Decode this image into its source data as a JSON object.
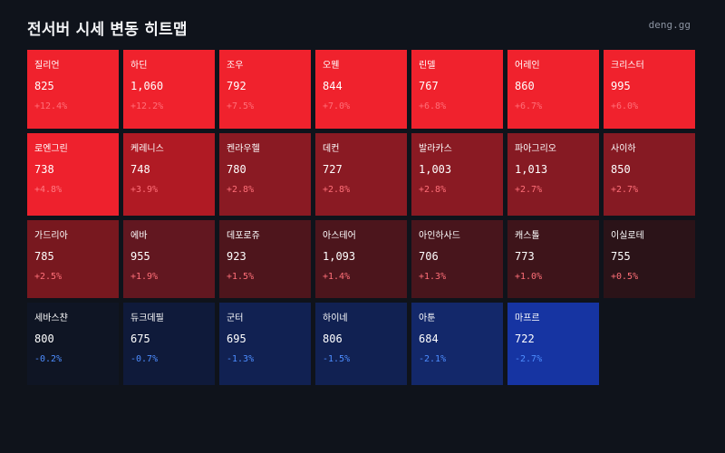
{
  "header": {
    "title": "전서버 시세 변동 히트맵",
    "brand": "deng.gg"
  },
  "cells": [
    {
      "name": "질리언",
      "price": "825",
      "change": "+12.4%",
      "bg": "#f0222d",
      "change_color": "#ff6f78"
    },
    {
      "name": "하딘",
      "price": "1,060",
      "change": "+12.2%",
      "bg": "#f0222d",
      "change_color": "#ff6f78"
    },
    {
      "name": "조우",
      "price": "792",
      "change": "+7.5%",
      "bg": "#f0222d",
      "change_color": "#ff6f78"
    },
    {
      "name": "오웬",
      "price": "844",
      "change": "+7.0%",
      "bg": "#f0222d",
      "change_color": "#ff6f78"
    },
    {
      "name": "린델",
      "price": "767",
      "change": "+6.8%",
      "bg": "#f0222d",
      "change_color": "#ff6f78"
    },
    {
      "name": "어레인",
      "price": "860",
      "change": "+6.7%",
      "bg": "#f0222d",
      "change_color": "#ff6f78"
    },
    {
      "name": "크리스터",
      "price": "995",
      "change": "+6.0%",
      "bg": "#f0222d",
      "change_color": "#ff6f78"
    },
    {
      "name": "로엔그린",
      "price": "738",
      "change": "+4.8%",
      "bg": "#ee212d",
      "change_color": "#ff7a82"
    },
    {
      "name": "케레니스",
      "price": "748",
      "change": "+3.9%",
      "bg": "#b01a24",
      "change_color": "#ff6f78"
    },
    {
      "name": "켄라우헬",
      "price": "780",
      "change": "+2.8%",
      "bg": "#8a1a23",
      "change_color": "#ff6f78"
    },
    {
      "name": "데컨",
      "price": "727",
      "change": "+2.8%",
      "bg": "#8a1a23",
      "change_color": "#ff6f78"
    },
    {
      "name": "발라카스",
      "price": "1,003",
      "change": "+2.8%",
      "bg": "#8a1a23",
      "change_color": "#ff6f78"
    },
    {
      "name": "파아그리오",
      "price": "1,013",
      "change": "+2.7%",
      "bg": "#861a23",
      "change_color": "#ff6f78"
    },
    {
      "name": "사이하",
      "price": "850",
      "change": "+2.7%",
      "bg": "#861a23",
      "change_color": "#ff6f78"
    },
    {
      "name": "가드리아",
      "price": "785",
      "change": "+2.5%",
      "bg": "#78181f",
      "change_color": "#ff6f78"
    },
    {
      "name": "에바",
      "price": "955",
      "change": "+1.9%",
      "bg": "#621720",
      "change_color": "#ff6f78"
    },
    {
      "name": "데포로쥬",
      "price": "923",
      "change": "+1.5%",
      "bg": "#4e151c",
      "change_color": "#ff6f78"
    },
    {
      "name": "아스테어",
      "price": "1,093",
      "change": "+1.4%",
      "bg": "#4c151c",
      "change_color": "#ff6f78"
    },
    {
      "name": "아인하사드",
      "price": "706",
      "change": "+1.3%",
      "bg": "#48151c",
      "change_color": "#ff6f78"
    },
    {
      "name": "캐스톨",
      "price": "773",
      "change": "+1.0%",
      "bg": "#3e141a",
      "change_color": "#ff6f78"
    },
    {
      "name": "이실로테",
      "price": "755",
      "change": "+0.5%",
      "bg": "#2b1318",
      "change_color": "#ff6f78"
    },
    {
      "name": "세바스챤",
      "price": "800",
      "change": "-0.2%",
      "bg": "#0f1524",
      "change_color": "#4d8dff"
    },
    {
      "name": "듀크데필",
      "price": "675",
      "change": "-0.7%",
      "bg": "#0f1a3a",
      "change_color": "#4d8dff"
    },
    {
      "name": "군터",
      "price": "695",
      "change": "-1.3%",
      "bg": "#112152",
      "change_color": "#4d8dff"
    },
    {
      "name": "하이네",
      "price": "806",
      "change": "-1.5%",
      "bg": "#112152",
      "change_color": "#4d8dff"
    },
    {
      "name": "아툰",
      "price": "684",
      "change": "-2.1%",
      "bg": "#13286a",
      "change_color": "#4d8dff"
    },
    {
      "name": "마프르",
      "price": "722",
      "change": "-2.7%",
      "bg": "#1634a2",
      "change_color": "#4d8dff"
    }
  ]
}
